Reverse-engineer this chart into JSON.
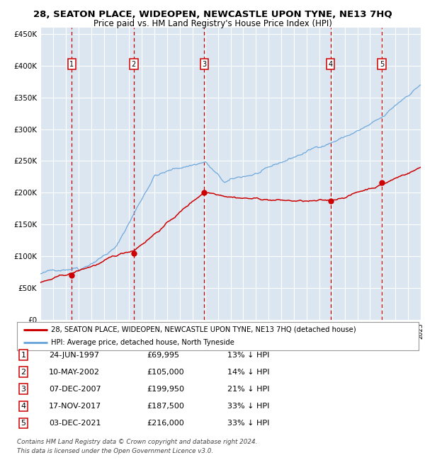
{
  "title": "28, SEATON PLACE, WIDEOPEN, NEWCASTLE UPON TYNE, NE13 7HQ",
  "subtitle": "Price paid vs. HM Land Registry's House Price Index (HPI)",
  "ylim": [
    0,
    460000
  ],
  "yticks": [
    0,
    50000,
    100000,
    150000,
    200000,
    250000,
    300000,
    350000,
    400000,
    450000
  ],
  "ytick_labels": [
    "£0",
    "£50K",
    "£100K",
    "£150K",
    "£200K",
    "£250K",
    "£300K",
    "£350K",
    "£400K",
    "£450K"
  ],
  "x_start_year": 1995,
  "x_end_year": 2025,
  "plot_bg_color": "#dce6f1",
  "grid_color": "#ffffff",
  "hpi_line_color": "#6fa8dc",
  "price_line_color": "#cc0000",
  "sale_dashed_color": "#cc0000",
  "label_box_color": "#cc0000",
  "sales": [
    {
      "date_year": 1997.48,
      "price": 69995,
      "label": "1"
    },
    {
      "date_year": 2002.36,
      "price": 105000,
      "label": "2"
    },
    {
      "date_year": 2007.93,
      "price": 199950,
      "label": "3"
    },
    {
      "date_year": 2017.88,
      "price": 187500,
      "label": "4"
    },
    {
      "date_year": 2021.92,
      "price": 216000,
      "label": "5"
    }
  ],
  "legend_line1": "28, SEATON PLACE, WIDEOPEN, NEWCASTLE UPON TYNE, NE13 7HQ (detached house)",
  "legend_line2": "HPI: Average price, detached house, North Tyneside",
  "table_rows": [
    [
      "1",
      "24-JUN-1997",
      "£69,995",
      "13% ↓ HPI"
    ],
    [
      "2",
      "10-MAY-2002",
      "£105,000",
      "14% ↓ HPI"
    ],
    [
      "3",
      "07-DEC-2007",
      "£199,950",
      "21% ↓ HPI"
    ],
    [
      "4",
      "17-NOV-2017",
      "£187,500",
      "33% ↓ HPI"
    ],
    [
      "5",
      "03-DEC-2021",
      "£216,000",
      "33% ↓ HPI"
    ]
  ],
  "footnote1": "Contains HM Land Registry data © Crown copyright and database right 2024.",
  "footnote2": "This data is licensed under the Open Government Licence v3.0."
}
